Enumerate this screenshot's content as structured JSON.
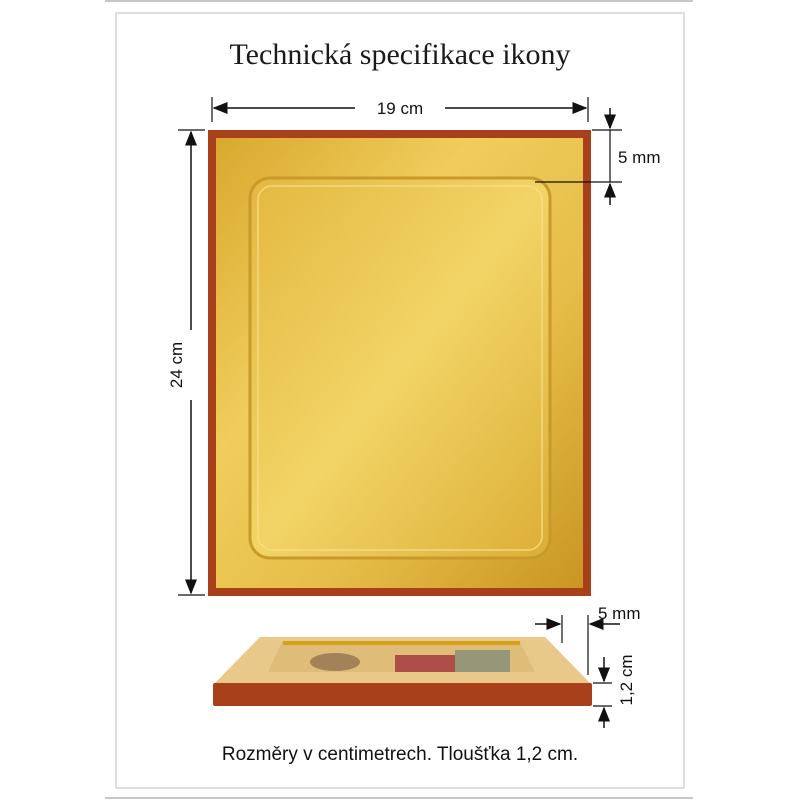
{
  "title": "Technická specifikace ikony",
  "dimensions": {
    "width": "19 cm",
    "height": "24 cm",
    "border_top": "5 mm",
    "border_side": "5 mm",
    "thickness": "1,2 cm"
  },
  "caption": "Rozměry v centimetrech. Tloušťka 1,2 cm.",
  "colors": {
    "gold": "#e2b740",
    "wood_red": "#a8401c",
    "frame_gray": "#c8c8c8"
  }
}
